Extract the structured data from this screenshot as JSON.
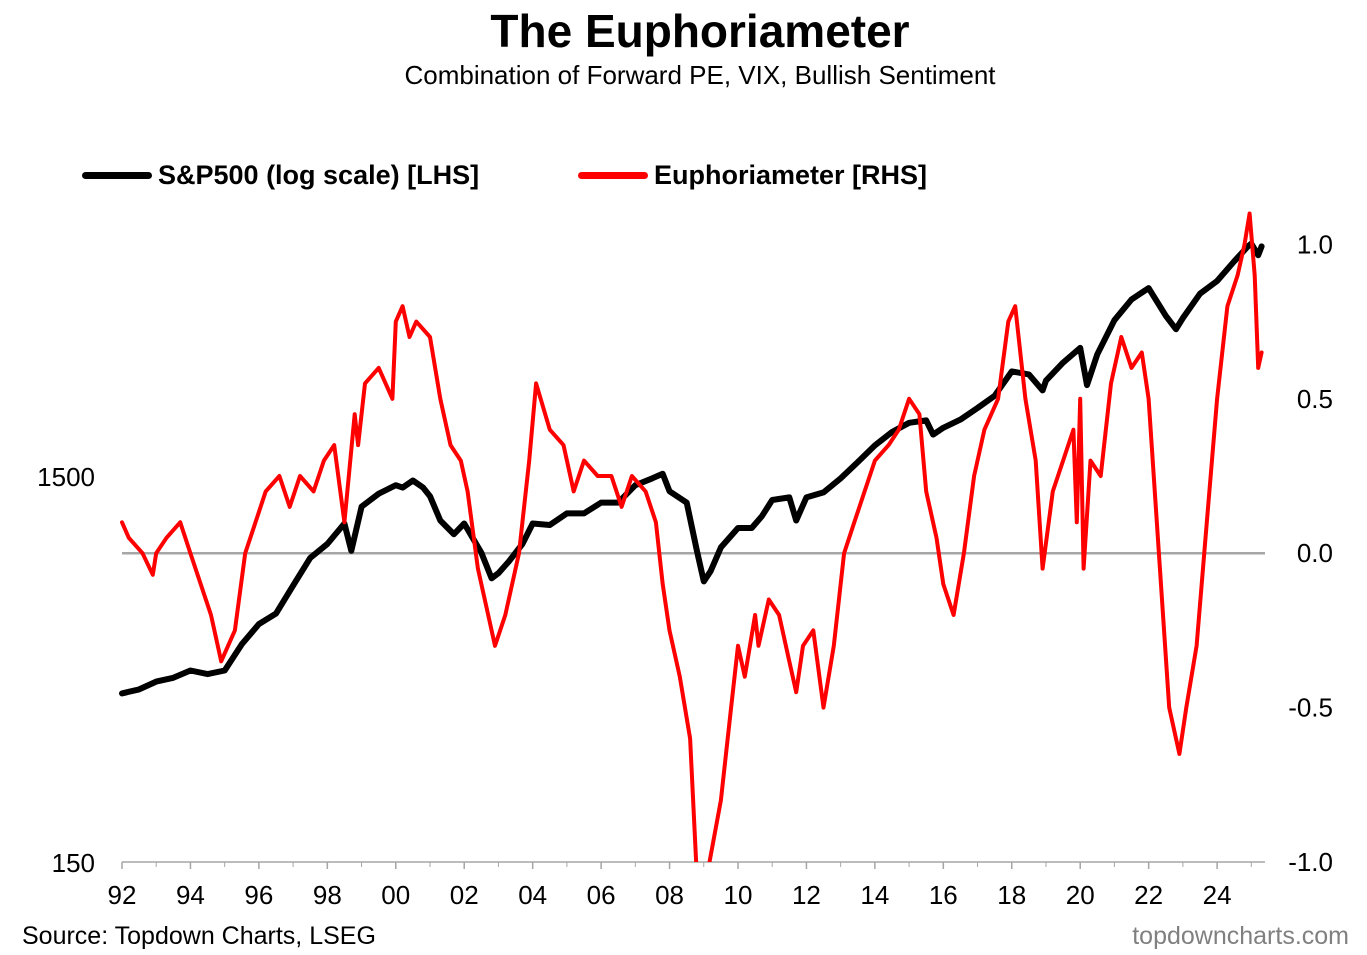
{
  "header": {
    "title": "The Euphoriameter",
    "subtitle": "Combination of Forward PE, VIX, Bullish Sentiment"
  },
  "legend": {
    "sp500_label": "S&P500 (log scale) [LHS]",
    "euph_label": "Euphoriameter [RHS]"
  },
  "footer": {
    "source": "Source: Topdown Charts, LSEG",
    "brand": "topdowncharts.com"
  },
  "colors": {
    "sp500": "#000000",
    "euphoriameter": "#ff0000",
    "zero_line": "#a6a6a6",
    "axis": "#a6a6a6"
  },
  "chart_data": {
    "type": "line",
    "title": "The Euphoriameter",
    "subtitle": "Combination of Forward PE, VIX, Bullish Sentiment",
    "x_range": [
      1992,
      2025.4
    ],
    "x_ticks": [
      {
        "x": 1992,
        "label": "92"
      },
      {
        "x": 1994,
        "label": "94"
      },
      {
        "x": 1996,
        "label": "96"
      },
      {
        "x": 1998,
        "label": "98"
      },
      {
        "x": 2000,
        "label": "00"
      },
      {
        "x": 2002,
        "label": "02"
      },
      {
        "x": 2004,
        "label": "04"
      },
      {
        "x": 2006,
        "label": "06"
      },
      {
        "x": 2008,
        "label": "08"
      },
      {
        "x": 2010,
        "label": "10"
      },
      {
        "x": 2012,
        "label": "12"
      },
      {
        "x": 2014,
        "label": "14"
      },
      {
        "x": 2016,
        "label": "16"
      },
      {
        "x": 2018,
        "label": "18"
      },
      {
        "x": 2020,
        "label": "20"
      },
      {
        "x": 2022,
        "label": "22"
      },
      {
        "x": 2024,
        "label": "24"
      }
    ],
    "left_axis": {
      "scale": "log",
      "range": [
        150,
        15000
      ],
      "ticks": [
        {
          "v": 150,
          "label": "150"
        },
        {
          "v": 1500,
          "label": "1500"
        }
      ]
    },
    "right_axis": {
      "scale": "linear",
      "range": [
        -1.0,
        1.5
      ],
      "ticks": [
        {
          "v": -1.0,
          "label": "-1.0"
        },
        {
          "v": -0.5,
          "label": "-0.5"
        },
        {
          "v": 0.0,
          "label": "0.0"
        },
        {
          "v": 0.5,
          "label": "0.5"
        },
        {
          "v": 1.0,
          "label": "1.0"
        }
      ]
    },
    "grid": false,
    "legend_position": "top-left",
    "series": [
      {
        "name": "S&P500 (log scale) [LHS]",
        "axis": "left",
        "x": [
          1992.0,
          1992.5,
          1993.0,
          1993.5,
          1994.0,
          1994.5,
          1995.0,
          1995.5,
          1996.0,
          1996.5,
          1997.0,
          1997.5,
          1998.0,
          1998.5,
          1998.7,
          1999.0,
          1999.5,
          2000.0,
          2000.2,
          2000.5,
          2000.8,
          2001.0,
          2001.3,
          2001.7,
          2002.0,
          2002.5,
          2002.8,
          2003.0,
          2003.3,
          2003.7,
          2004.0,
          2004.5,
          2005.0,
          2005.5,
          2006.0,
          2006.5,
          2007.0,
          2007.5,
          2007.8,
          2008.0,
          2008.5,
          2008.8,
          2009.0,
          2009.2,
          2009.5,
          2010.0,
          2010.4,
          2010.7,
          2011.0,
          2011.5,
          2011.7,
          2012.0,
          2012.5,
          2013.0,
          2013.5,
          2014.0,
          2014.5,
          2015.0,
          2015.5,
          2015.7,
          2016.0,
          2016.5,
          2017.0,
          2017.5,
          2018.0,
          2018.5,
          2018.9,
          2019.0,
          2019.5,
          2020.0,
          2020.2,
          2020.5,
          2021.0,
          2021.5,
          2022.0,
          2022.5,
          2022.8,
          2023.0,
          2023.5,
          2024.0,
          2024.5,
          2024.9,
          2025.0,
          2025.2,
          2025.3
        ],
        "y": [
          410,
          420,
          440,
          450,
          470,
          460,
          470,
          550,
          620,
          660,
          780,
          920,
          1000,
          1130,
          960,
          1250,
          1350,
          1420,
          1400,
          1460,
          1400,
          1330,
          1150,
          1060,
          1130,
          950,
          815,
          840,
          900,
          1000,
          1130,
          1120,
          1200,
          1200,
          1280,
          1280,
          1420,
          1480,
          1520,
          1370,
          1280,
          960,
          800,
          850,
          980,
          1100,
          1100,
          1180,
          1300,
          1320,
          1150,
          1320,
          1360,
          1480,
          1630,
          1800,
          1950,
          2060,
          2090,
          1920,
          2000,
          2100,
          2250,
          2420,
          2800,
          2750,
          2500,
          2650,
          2950,
          3220,
          2580,
          3100,
          3800,
          4300,
          4600,
          3900,
          3600,
          3850,
          4450,
          4800,
          5400,
          5900,
          6000,
          5600,
          5900
        ]
      },
      {
        "name": "Euphoriameter [RHS]",
        "axis": "right",
        "x": [
          1992.0,
          1992.2,
          1992.6,
          1992.9,
          1993.0,
          1993.3,
          1993.7,
          1994.0,
          1994.3,
          1994.6,
          1994.9,
          1995.3,
          1995.6,
          1995.9,
          1996.2,
          1996.6,
          1996.9,
          1997.2,
          1997.6,
          1997.9,
          1998.2,
          1998.5,
          1998.8,
          1998.9,
          1999.1,
          1999.5,
          1999.9,
          2000.0,
          2000.2,
          2000.4,
          2000.6,
          2001.0,
          2001.3,
          2001.6,
          2001.9,
          2002.1,
          2002.4,
          2002.7,
          2002.9,
          2003.2,
          2003.6,
          2003.9,
          2004.1,
          2004.5,
          2004.9,
          2005.2,
          2005.5,
          2005.9,
          2006.3,
          2006.6,
          2006.9,
          2007.3,
          2007.6,
          2007.8,
          2008.0,
          2008.3,
          2008.6,
          2008.8,
          2009.0,
          2009.5,
          2009.8,
          2010.0,
          2010.2,
          2010.5,
          2010.6,
          2010.9,
          2011.2,
          2011.5,
          2011.7,
          2011.9,
          2012.2,
          2012.5,
          2012.8,
          2013.1,
          2013.4,
          2013.7,
          2014.0,
          2014.4,
          2014.7,
          2015.0,
          2015.3,
          2015.5,
          2015.8,
          2016.0,
          2016.3,
          2016.6,
          2016.9,
          2017.2,
          2017.6,
          2017.9,
          2018.1,
          2018.4,
          2018.7,
          2018.9,
          2019.2,
          2019.5,
          2019.8,
          2019.9,
          2020.0,
          2020.1,
          2020.3,
          2020.6,
          2020.9,
          2021.2,
          2021.5,
          2021.8,
          2022.0,
          2022.3,
          2022.6,
          2022.9,
          2023.1,
          2023.4,
          2023.7,
          2024.0,
          2024.3,
          2024.6,
          2024.8,
          2024.95,
          2025.1,
          2025.2,
          2025.3
        ],
        "y": [
          0.1,
          0.05,
          0.0,
          -0.07,
          0.0,
          0.05,
          0.1,
          0.0,
          -0.1,
          -0.2,
          -0.35,
          -0.25,
          0.0,
          0.1,
          0.2,
          0.25,
          0.15,
          0.25,
          0.2,
          0.3,
          0.35,
          0.1,
          0.45,
          0.35,
          0.55,
          0.6,
          0.5,
          0.75,
          0.8,
          0.7,
          0.75,
          0.7,
          0.5,
          0.35,
          0.3,
          0.2,
          -0.05,
          -0.2,
          -0.3,
          -0.2,
          0.0,
          0.3,
          0.55,
          0.4,
          0.35,
          0.2,
          0.3,
          0.25,
          0.25,
          0.15,
          0.25,
          0.2,
          0.1,
          -0.1,
          -0.25,
          -0.4,
          -0.6,
          -1.05,
          -1.1,
          -0.8,
          -0.5,
          -0.3,
          -0.4,
          -0.2,
          -0.3,
          -0.15,
          -0.2,
          -0.35,
          -0.45,
          -0.3,
          -0.25,
          -0.5,
          -0.3,
          0.0,
          0.1,
          0.2,
          0.3,
          0.35,
          0.4,
          0.5,
          0.45,
          0.2,
          0.05,
          -0.1,
          -0.2,
          0.0,
          0.25,
          0.4,
          0.5,
          0.75,
          0.8,
          0.5,
          0.3,
          -0.05,
          0.2,
          0.3,
          0.4,
          0.1,
          0.5,
          -0.05,
          0.3,
          0.25,
          0.55,
          0.7,
          0.6,
          0.65,
          0.5,
          0.0,
          -0.5,
          -0.65,
          -0.5,
          -0.3,
          0.1,
          0.5,
          0.8,
          0.9,
          1.0,
          1.1,
          0.9,
          0.6,
          0.65
        ]
      }
    ]
  }
}
